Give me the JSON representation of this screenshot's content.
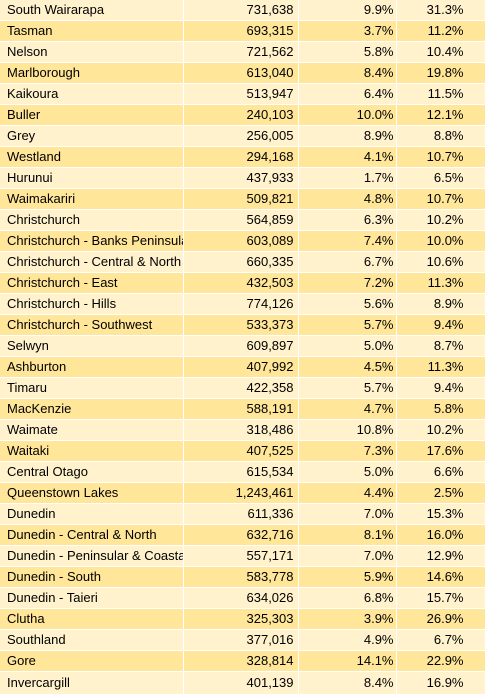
{
  "table": {
    "rows": [
      {
        "region": "South Wairarapa",
        "price": "731,638",
        "change1": "9.9%",
        "change2": "31.3%"
      },
      {
        "region": "Tasman",
        "price": "693,315",
        "change1": "3.7%",
        "change2": "11.2%"
      },
      {
        "region": "Nelson",
        "price": "721,562",
        "change1": "5.8%",
        "change2": "10.4%"
      },
      {
        "region": "Marlborough",
        "price": "613,040",
        "change1": "8.4%",
        "change2": "19.8%"
      },
      {
        "region": "Kaikoura",
        "price": "513,947",
        "change1": "6.4%",
        "change2": "11.5%"
      },
      {
        "region": "Buller",
        "price": "240,103",
        "change1": "10.0%",
        "change2": "12.1%"
      },
      {
        "region": "Grey",
        "price": "256,005",
        "change1": "8.9%",
        "change2": "8.8%"
      },
      {
        "region": "Westland",
        "price": "294,168",
        "change1": "4.1%",
        "change2": "10.7%"
      },
      {
        "region": "Hurunui",
        "price": "437,933",
        "change1": "1.7%",
        "change2": "6.5%"
      },
      {
        "region": "Waimakariri",
        "price": "509,821",
        "change1": "4.8%",
        "change2": "10.7%"
      },
      {
        "region": "Christchurch",
        "price": "564,859",
        "change1": "6.3%",
        "change2": "10.2%"
      },
      {
        "region": "Christchurch - Banks Peninsula",
        "price": "603,089",
        "change1": "7.4%",
        "change2": "10.0%"
      },
      {
        "region": "Christchurch - Central & North",
        "price": "660,335",
        "change1": "6.7%",
        "change2": "10.6%"
      },
      {
        "region": "Christchurch - East",
        "price": "432,503",
        "change1": "7.2%",
        "change2": "11.3%"
      },
      {
        "region": "Christchurch - Hills",
        "price": "774,126",
        "change1": "5.6%",
        "change2": "8.9%"
      },
      {
        "region": "Christchurch - Southwest",
        "price": "533,373",
        "change1": "5.7%",
        "change2": "9.4%"
      },
      {
        "region": "Selwyn",
        "price": "609,897",
        "change1": "5.0%",
        "change2": "8.7%"
      },
      {
        "region": "Ashburton",
        "price": "407,992",
        "change1": "4.5%",
        "change2": "11.3%"
      },
      {
        "region": "Timaru",
        "price": "422,358",
        "change1": "5.7%",
        "change2": "9.4%"
      },
      {
        "region": "MacKenzie",
        "price": "588,191",
        "change1": "4.7%",
        "change2": "5.8%"
      },
      {
        "region": "Waimate",
        "price": "318,486",
        "change1": "10.8%",
        "change2": "10.2%"
      },
      {
        "region": "Waitaki",
        "price": "407,525",
        "change1": "7.3%",
        "change2": "17.6%"
      },
      {
        "region": "Central Otago",
        "price": "615,534",
        "change1": "5.0%",
        "change2": "6.6%"
      },
      {
        "region": "Queenstown Lakes",
        "price": "1,243,461",
        "change1": "4.4%",
        "change2": "2.5%"
      },
      {
        "region": "Dunedin",
        "price": "611,336",
        "change1": "7.0%",
        "change2": "15.3%"
      },
      {
        "region": "Dunedin - Central & North",
        "price": "632,716",
        "change1": "8.1%",
        "change2": "16.0%"
      },
      {
        "region": "Dunedin - Peninsular & Coastal",
        "price": "557,171",
        "change1": "7.0%",
        "change2": "12.9%"
      },
      {
        "region": "Dunedin - South",
        "price": "583,778",
        "change1": "5.9%",
        "change2": "14.6%"
      },
      {
        "region": "Dunedin - Taieri",
        "price": "634,026",
        "change1": "6.8%",
        "change2": "15.7%"
      },
      {
        "region": "Clutha",
        "price": "325,303",
        "change1": "3.9%",
        "change2": "26.9%"
      },
      {
        "region": "Southland",
        "price": "377,016",
        "change1": "4.9%",
        "change2": "6.7%"
      },
      {
        "region": "Gore",
        "price": "328,814",
        "change1": "14.1%",
        "change2": "22.9%"
      },
      {
        "region": "Invercargill",
        "price": "401,139",
        "change1": "8.4%",
        "change2": "16.9%"
      }
    ]
  },
  "colors": {
    "row_light": "#fff2cc",
    "row_dark": "#ffe699"
  }
}
